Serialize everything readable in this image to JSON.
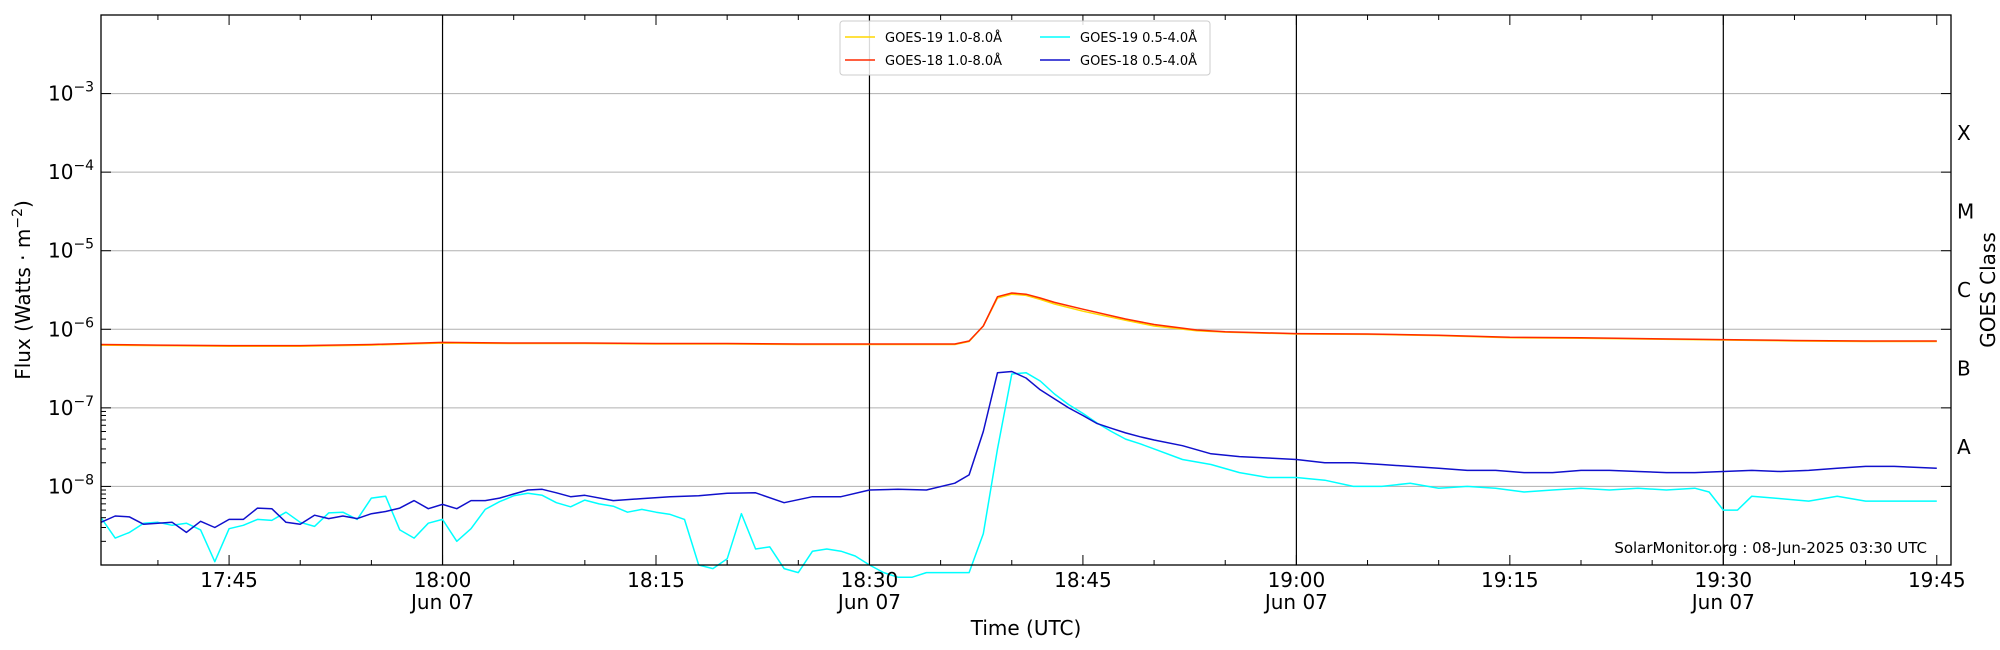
{
  "chart_data": {
    "type": "line",
    "xlabel": "Time (UTC)",
    "ylabel_main": "Flux (Watts · m",
    "ylabel_sup": "−2",
    "ylabel_close": ")",
    "right_label": "GOES Class",
    "y_scale": "log",
    "xlim": [
      "17:36",
      "19:46"
    ],
    "ylim": [
      1e-09,
      0.01
    ],
    "x_ticks": [
      {
        "time": "17:45",
        "label": "17:45",
        "date": ""
      },
      {
        "time": "18:00",
        "label": "18:00",
        "date": "Jun 07"
      },
      {
        "time": "18:15",
        "label": "18:15",
        "date": ""
      },
      {
        "time": "18:30",
        "label": "18:30",
        "date": "Jun 07"
      },
      {
        "time": "18:45",
        "label": "18:45",
        "date": ""
      },
      {
        "time": "19:00",
        "label": "19:00",
        "date": "Jun 07"
      },
      {
        "time": "19:15",
        "label": "19:15",
        "date": ""
      },
      {
        "time": "19:30",
        "label": "19:30",
        "date": "Jun 07"
      },
      {
        "time": "19:45",
        "label": "19:45",
        "date": ""
      }
    ],
    "y_ticks": [
      {
        "value": 0.001,
        "base": "10",
        "exp": "−3"
      },
      {
        "value": 0.0001,
        "base": "10",
        "exp": "−4"
      },
      {
        "value": 1e-05,
        "base": "10",
        "exp": "−5"
      },
      {
        "value": 1e-06,
        "base": "10",
        "exp": "−6"
      },
      {
        "value": 1e-07,
        "base": "10",
        "exp": "−7"
      },
      {
        "value": 1e-08,
        "base": "10",
        "exp": "−8"
      }
    ],
    "class_labels": [
      {
        "label": "X",
        "value": 0.000316
      },
      {
        "label": "M",
        "value": 3.16e-05
      },
      {
        "label": "C",
        "value": 3.16e-06
      },
      {
        "label": "B",
        "value": 3.16e-07
      },
      {
        "label": "A",
        "value": 3.16e-08
      }
    ],
    "grid": true,
    "vertical_lines": [
      "18:00",
      "18:30",
      "19:00",
      "19:30"
    ],
    "legend_position": "top-center",
    "annotation": "SolarMonitor.org : 08-Jun-2025 03:30 UTC",
    "series": [
      {
        "name": "GOES-19 1.0-8.0Å",
        "color": "#FFD700",
        "x": [
          "17:36",
          "17:40",
          "17:45",
          "17:50",
          "17:55",
          "18:00",
          "18:05",
          "18:10",
          "18:15",
          "18:20",
          "18:25",
          "18:30",
          "18:34",
          "18:36",
          "18:37",
          "18:38",
          "18:39",
          "18:40",
          "18:41",
          "18:42",
          "18:43",
          "18:45",
          "18:48",
          "18:50",
          "18:53",
          "18:55",
          "19:00",
          "19:05",
          "19:10",
          "19:15",
          "19:20",
          "19:25",
          "19:30",
          "19:35",
          "19:40",
          "19:45"
        ],
        "values": [
          6.3e-07,
          6.2e-07,
          6.1e-07,
          6.1e-07,
          6.3e-07,
          6.7e-07,
          6.6e-07,
          6.6e-07,
          6.5e-07,
          6.5e-07,
          6.4e-07,
          6.4e-07,
          6.4e-07,
          6.4e-07,
          7e-07,
          1.1e-06,
          2.5e-06,
          2.8e-06,
          2.7e-06,
          2.4e-06,
          2.1e-06,
          1.7e-06,
          1.3e-06,
          1.1e-06,
          9.6e-07,
          9.2e-07,
          8.7e-07,
          8.6e-07,
          8.3e-07,
          7.8e-07,
          7.7e-07,
          7.5e-07,
          7.3e-07,
          7.1e-07,
          7e-07,
          7e-07
        ]
      },
      {
        "name": "GOES-18 1.0-8.0Å",
        "color": "#FF2A00",
        "x": [
          "17:36",
          "17:40",
          "17:45",
          "17:50",
          "17:55",
          "18:00",
          "18:05",
          "18:10",
          "18:15",
          "18:20",
          "18:25",
          "18:30",
          "18:34",
          "18:36",
          "18:37",
          "18:38",
          "18:39",
          "18:40",
          "18:41",
          "18:42",
          "18:43",
          "18:45",
          "18:48",
          "18:50",
          "18:53",
          "18:55",
          "19:00",
          "19:05",
          "19:10",
          "19:15",
          "19:20",
          "19:25",
          "19:30",
          "19:35",
          "19:40",
          "19:45"
        ],
        "values": [
          6.4e-07,
          6.3e-07,
          6.2e-07,
          6.2e-07,
          6.4e-07,
          6.8e-07,
          6.7e-07,
          6.7e-07,
          6.6e-07,
          6.6e-07,
          6.5e-07,
          6.5e-07,
          6.5e-07,
          6.5e-07,
          7.1e-07,
          1.1e-06,
          2.6e-06,
          2.9e-06,
          2.8e-06,
          2.5e-06,
          2.2e-06,
          1.8e-06,
          1.35e-06,
          1.15e-06,
          9.8e-07,
          9.3e-07,
          8.8e-07,
          8.7e-07,
          8.4e-07,
          7.9e-07,
          7.8e-07,
          7.6e-07,
          7.4e-07,
          7.2e-07,
          7.1e-07,
          7.1e-07
        ]
      },
      {
        "name": "GOES-19 0.5-4.0Å",
        "color": "#00FFFF",
        "x": [
          "17:36",
          "17:37",
          "17:38",
          "17:39",
          "17:40",
          "17:41",
          "17:42",
          "17:43",
          "17:44",
          "17:45",
          "17:46",
          "17:47",
          "17:48",
          "17:49",
          "17:50",
          "17:51",
          "17:52",
          "17:53",
          "17:54",
          "17:55",
          "17:56",
          "17:57",
          "17:58",
          "17:59",
          "18:00",
          "18:01",
          "18:02",
          "18:03",
          "18:04",
          "18:05",
          "18:06",
          "18:07",
          "18:08",
          "18:09",
          "18:10",
          "18:11",
          "18:12",
          "18:13",
          "18:14",
          "18:15",
          "18:16",
          "18:17",
          "18:18",
          "18:19",
          "18:20",
          "18:21",
          "18:22",
          "18:23",
          "18:24",
          "18:25",
          "18:26",
          "18:27",
          "18:28",
          "18:29",
          "18:30",
          "18:31",
          "18:32",
          "18:33",
          "18:34",
          "18:35",
          "18:36",
          "18:37",
          "18:38",
          "18:39",
          "18:40",
          "18:41",
          "18:42",
          "18:43",
          "18:44",
          "18:45",
          "18:46",
          "18:47",
          "18:48",
          "18:49",
          "18:50",
          "18:52",
          "18:54",
          "18:56",
          "18:58",
          "19:00",
          "19:02",
          "19:04",
          "19:06",
          "19:08",
          "19:10",
          "19:12",
          "19:14",
          "19:16",
          "19:18",
          "19:20",
          "19:22",
          "19:24",
          "19:26",
          "19:28",
          "19:29",
          "19:30",
          "19:31",
          "19:32",
          "19:34",
          "19:36",
          "19:38",
          "19:40",
          "19:42",
          "19:45"
        ],
        "values": [
          4e-09,
          2.2e-09,
          2.6e-09,
          3.4e-09,
          3.5e-09,
          3.2e-09,
          3.4e-09,
          2.8e-09,
          1.1e-09,
          2.9e-09,
          3.2e-09,
          3.8e-09,
          3.7e-09,
          4.7e-09,
          3.5e-09,
          3.1e-09,
          4.6e-09,
          4.7e-09,
          3.8e-09,
          7.1e-09,
          7.5e-09,
          2.8e-09,
          2.2e-09,
          3.4e-09,
          3.8e-09,
          2e-09,
          2.9e-09,
          5.1e-09,
          6.4e-09,
          7.6e-09,
          8.2e-09,
          7.7e-09,
          6.2e-09,
          5.5e-09,
          6.7e-09,
          6e-09,
          5.6e-09,
          4.7e-09,
          5.1e-09,
          4.7e-09,
          4.4e-09,
          3.8e-09,
          1e-09,
          9e-10,
          1.2e-09,
          4.5e-09,
          1.6e-09,
          1.7e-09,
          9e-10,
          8e-10,
          1.5e-09,
          1.6e-09,
          1.5e-09,
          1.3e-09,
          1e-09,
          8e-10,
          7e-10,
          7e-10,
          8e-10,
          8e-10,
          8e-10,
          8e-10,
          2.5e-09,
          3e-08,
          2.7e-07,
          2.8e-07,
          2.2e-07,
          1.5e-07,
          1.1e-07,
          8.5e-08,
          6.4e-08,
          5e-08,
          4e-08,
          3.5e-08,
          3e-08,
          2.2e-08,
          1.9e-08,
          1.5e-08,
          1.3e-08,
          1.3e-08,
          1.2e-08,
          1e-08,
          1e-08,
          1.1e-08,
          9.5e-09,
          1e-08,
          9.5e-09,
          8.5e-09,
          9e-09,
          9.5e-09,
          9e-09,
          9.5e-09,
          9e-09,
          9.5e-09,
          8.5e-09,
          5e-09,
          5e-09,
          7.5e-09,
          7e-09,
          6.5e-09,
          7.5e-09,
          6.5e-09,
          6.5e-09,
          6.5e-09
        ]
      },
      {
        "name": "GOES-18 0.5-4.0Å",
        "color": "#1010CC",
        "x": [
          "17:36",
          "17:37",
          "17:38",
          "17:39",
          "17:40",
          "17:41",
          "17:42",
          "17:43",
          "17:44",
          "17:45",
          "17:46",
          "17:47",
          "17:48",
          "17:49",
          "17:50",
          "17:51",
          "17:52",
          "17:53",
          "17:54",
          "17:55",
          "17:56",
          "17:57",
          "17:58",
          "17:59",
          "18:00",
          "18:01",
          "18:02",
          "18:03",
          "18:04",
          "18:05",
          "18:06",
          "18:07",
          "18:08",
          "18:09",
          "18:10",
          "18:12",
          "18:14",
          "18:16",
          "18:18",
          "18:20",
          "18:22",
          "18:24",
          "18:26",
          "18:28",
          "18:30",
          "18:32",
          "18:34",
          "18:36",
          "18:37",
          "18:38",
          "18:39",
          "18:40",
          "18:41",
          "18:42",
          "18:43",
          "18:44",
          "18:45",
          "18:46",
          "18:47",
          "18:48",
          "18:49",
          "18:50",
          "18:52",
          "18:54",
          "18:56",
          "18:58",
          "19:00",
          "19:02",
          "19:04",
          "19:06",
          "19:08",
          "19:10",
          "19:12",
          "19:14",
          "19:16",
          "19:18",
          "19:20",
          "19:22",
          "19:24",
          "19:26",
          "19:28",
          "19:30",
          "19:32",
          "19:34",
          "19:36",
          "19:38",
          "19:40",
          "19:42",
          "19:45"
        ],
        "values": [
          3.5e-09,
          4.2e-09,
          4.1e-09,
          3.3e-09,
          3.4e-09,
          3.5e-09,
          2.6e-09,
          3.6e-09,
          3e-09,
          3.8e-09,
          3.8e-09,
          5.3e-09,
          5.2e-09,
          3.5e-09,
          3.3e-09,
          4.3e-09,
          3.9e-09,
          4.2e-09,
          3.9e-09,
          4.5e-09,
          4.8e-09,
          5.3e-09,
          6.6e-09,
          5.2e-09,
          5.9e-09,
          5.2e-09,
          6.6e-09,
          6.6e-09,
          7.1e-09,
          8e-09,
          9e-09,
          9.2e-09,
          8.3e-09,
          7.4e-09,
          7.7e-09,
          6.6e-09,
          7e-09,
          7.4e-09,
          7.6e-09,
          8.2e-09,
          8.3e-09,
          6.2e-09,
          7.4e-09,
          7.4e-09,
          9e-09,
          9.2e-09,
          9e-09,
          1.1e-08,
          1.4e-08,
          5e-08,
          2.8e-07,
          2.9e-07,
          2.4e-07,
          1.7e-07,
          1.3e-07,
          1e-07,
          8e-08,
          6.3e-08,
          5.5e-08,
          4.8e-08,
          4.3e-08,
          3.9e-08,
          3.3e-08,
          2.6e-08,
          2.4e-08,
          2.3e-08,
          2.2e-08,
          2e-08,
          2e-08,
          1.9e-08,
          1.8e-08,
          1.7e-08,
          1.6e-08,
          1.6e-08,
          1.5e-08,
          1.5e-08,
          1.6e-08,
          1.6e-08,
          1.55e-08,
          1.5e-08,
          1.5e-08,
          1.55e-08,
          1.6e-08,
          1.55e-08,
          1.6e-08,
          1.7e-08,
          1.8e-08,
          1.8e-08,
          1.7e-08
        ]
      }
    ]
  }
}
